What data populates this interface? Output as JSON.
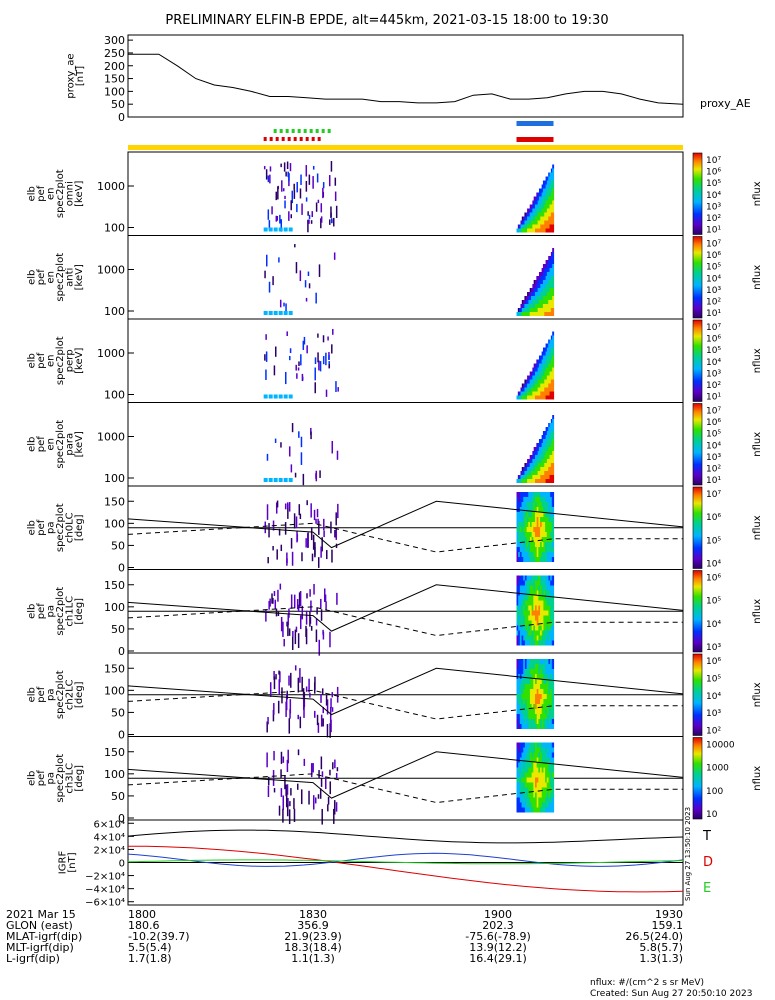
{
  "title": "PRELIMINARY ELFIN-B EPDE, alt=445km, 2021-03-15 18:00 to 19:30",
  "colors": {
    "axis": "#000000",
    "status_bar": "#ffd400",
    "green": "#22cc22",
    "red": "#dd0000",
    "blue": "#1e6fe0",
    "igrf_x": "#000000",
    "igrf_y": "#dd0000",
    "igrf_z": "#1e40d0",
    "igrf_e": "#22cc22"
  },
  "panels": {
    "proxy_ae": {
      "ylabel": "proxy_ae",
      "unit": "[nT]",
      "yticks": [
        "300",
        "250",
        "200",
        "150",
        "100",
        "50",
        "0"
      ],
      "legend": "proxy_AE"
    },
    "spec_en": [
      {
        "ylabel": [
          "elb",
          "pef",
          "en",
          "spec2plot",
          "omni"
        ],
        "unit": "[keV]",
        "yticks": [
          "1000",
          "100"
        ]
      },
      {
        "ylabel": [
          "elb",
          "pef",
          "en",
          "spec2plot",
          "anti"
        ],
        "unit": "[keV]",
        "yticks": [
          "1000",
          "100"
        ]
      },
      {
        "ylabel": [
          "elb",
          "pef",
          "en",
          "spec2plot",
          "perp"
        ],
        "unit": "[keV]",
        "yticks": [
          "1000",
          "100"
        ]
      },
      {
        "ylabel": [
          "elb",
          "pef",
          "en",
          "spec2plot",
          "para"
        ],
        "unit": "[keV]",
        "yticks": [
          "1000",
          "100"
        ]
      }
    ],
    "spec_pa": [
      {
        "ylabel": [
          "elb",
          "pef",
          "pa",
          "spec2plot",
          "ch0LC"
        ],
        "unit": "[deg]",
        "yticks": [
          "150",
          "100",
          "50",
          "0"
        ]
      },
      {
        "ylabel": [
          "elb",
          "pef",
          "pa",
          "spec2plot",
          "ch1LC"
        ],
        "unit": "[deg]",
        "yticks": [
          "150",
          "100",
          "50",
          "0"
        ]
      },
      {
        "ylabel": [
          "elb",
          "pef",
          "pa",
          "spec2plot",
          "ch2LC"
        ],
        "unit": "[deg]",
        "yticks": [
          "150",
          "100",
          "50",
          "0"
        ]
      },
      {
        "ylabel": [
          "elb",
          "pef",
          "pa",
          "spec2plot",
          "ch3LC"
        ],
        "unit": "[deg]",
        "yticks": [
          "150",
          "100",
          "50",
          "0"
        ]
      }
    ],
    "colorbars": [
      {
        "label": "nflux",
        "ticks": [
          "10⁷",
          "10⁶",
          "10⁵",
          "10⁴",
          "10³",
          "10²",
          "10¹"
        ]
      },
      {
        "label": "nflux",
        "ticks": [
          "10⁷",
          "10⁶",
          "10⁵",
          "10⁴",
          "10³",
          "10²",
          "10¹"
        ]
      },
      {
        "label": "nflux",
        "ticks": [
          "10⁷",
          "10⁶",
          "10⁵",
          "10⁴",
          "10³",
          "10²",
          "10¹"
        ]
      },
      {
        "label": "nflux",
        "ticks": [
          "10⁷",
          "10⁶",
          "10⁵",
          "10⁴",
          "10³",
          "10²",
          "10¹"
        ]
      },
      {
        "label": "nflux",
        "ticks": [
          "10⁷",
          "10⁶",
          "10⁵",
          "10⁴"
        ]
      },
      {
        "label": "nflux",
        "ticks": [
          "10⁶",
          "10⁵",
          "10⁴",
          "10³"
        ]
      },
      {
        "label": "nflux",
        "ticks": [
          "10⁶",
          "10⁵",
          "10⁴",
          "10³",
          "10²"
        ]
      },
      {
        "label": "nflux",
        "ticks": [
          "10000",
          "1000",
          "100",
          "10"
        ]
      }
    ],
    "igrf": {
      "ylabel": "IGRF",
      "unit": "[nT]",
      "yticks": [
        "6×10⁴",
        "4×10⁴",
        "2×10⁴",
        "0",
        "−2×10⁴",
        "−4×10⁴",
        "−6×10⁴"
      ],
      "legend": [
        "T",
        "D",
        "E"
      ],
      "side_text": "Sun Aug 27 13:50:10 2023"
    }
  },
  "footer": {
    "rows": [
      {
        "label": "2021 Mar 15",
        "values": [
          "1800",
          "1830",
          "1900",
          "1930"
        ]
      },
      {
        "label": "GLON (east)",
        "values": [
          "180.6",
          "356.9",
          "202.3",
          "159.1"
        ]
      },
      {
        "label": "MLAT-igrf(dip)",
        "values": [
          "-10.2(39.7)",
          "21.9(23.9)",
          "-75.6(-78.9)",
          "26.5(24.0)"
        ]
      },
      {
        "label": "MLT-igrf(dip)",
        "values": [
          "5.5(5.4)",
          "18.3(18.4)",
          "13.9(12.2)",
          "5.8(5.7)"
        ]
      },
      {
        "label": "L-igrf(dip)",
        "values": [
          "1.7(1.8)",
          "1.1(1.3)",
          "16.4(29.1)",
          "1.3(1.3)"
        ]
      }
    ],
    "units_note": "nflux: #/(cm^2 s sr MeV)",
    "created": "Created: Sun Aug 27 20:50:10 2023"
  },
  "chart_data": {
    "type": "line",
    "x_range": [
      "2021-03-15 18:00",
      "2021-03-15 19:30"
    ],
    "x_ticks": [
      "1800",
      "1830",
      "1900",
      "1930"
    ],
    "proxy_ae": {
      "t": [
        "18:00",
        "18:05",
        "18:08",
        "18:11",
        "18:14",
        "18:17",
        "18:20",
        "18:23",
        "18:26",
        "18:29",
        "18:32",
        "18:35",
        "18:38",
        "18:41",
        "18:44",
        "18:47",
        "18:50",
        "18:53",
        "18:56",
        "18:59",
        "19:02",
        "19:05",
        "19:08",
        "19:11",
        "19:14",
        "19:17",
        "19:20",
        "19:23",
        "19:26",
        "19:30"
      ],
      "values": [
        245,
        245,
        200,
        150,
        125,
        115,
        100,
        80,
        80,
        75,
        70,
        70,
        70,
        60,
        60,
        55,
        55,
        60,
        85,
        90,
        70,
        70,
        75,
        90,
        100,
        100,
        90,
        70,
        55,
        50
      ],
      "ylim": [
        0,
        320
      ]
    },
    "science_zones": [
      {
        "start": "18:22",
        "end": "18:34"
      },
      {
        "start": "19:03",
        "end": "19:09"
      }
    ]
  }
}
